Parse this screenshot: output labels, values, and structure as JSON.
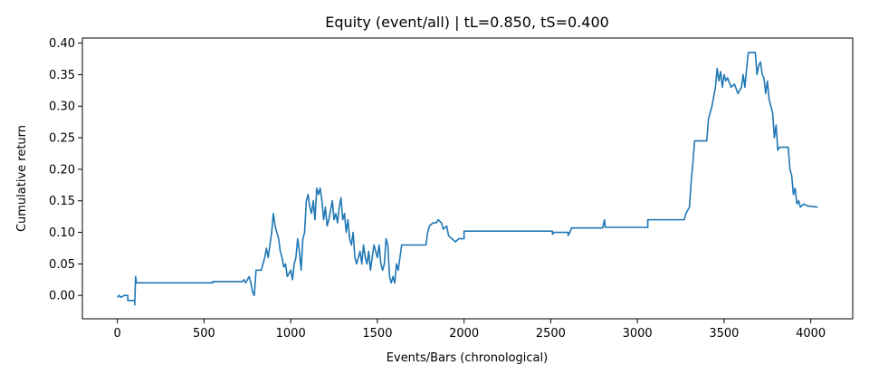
{
  "chart_data": {
    "type": "line",
    "title": "Equity (event/all) | tL=0.850, tS=0.400",
    "x_label": "Events/Bars (chronological)",
    "y_label": "Cumulative return",
    "xlim": [
      -202,
      4242
    ],
    "ylim": [
      -0.037,
      0.408
    ],
    "xticks": [
      0,
      500,
      1000,
      1500,
      2000,
      2500,
      3000,
      3500,
      4000
    ],
    "yticks": [
      {
        "value": 0,
        "label": "0.00"
      },
      {
        "value": 0.05,
        "label": "0.05"
      },
      {
        "value": 0.1,
        "label": "0.10"
      },
      {
        "value": 0.15,
        "label": "0.15"
      },
      {
        "value": 0.2,
        "label": "0.20"
      },
      {
        "value": 0.25,
        "label": "0.25"
      },
      {
        "value": 0.3,
        "label": "0.30"
      },
      {
        "value": 0.35,
        "label": "0.35"
      },
      {
        "value": 0.4,
        "label": "0.40"
      }
    ],
    "grid": false,
    "series": [
      {
        "color": "#1f77b4",
        "x": [
          0,
          10,
          20,
          40,
          60,
          60,
          100,
          100,
          105,
          110,
          550,
          550,
          720,
          730,
          740,
          760,
          770,
          780,
          790,
          800,
          830,
          840,
          850,
          860,
          870,
          880,
          890,
          900,
          910,
          920,
          930,
          940,
          950,
          960,
          970,
          980,
          1000,
          1010,
          1020,
          1030,
          1040,
          1050,
          1060,
          1070,
          1080,
          1090,
          1100,
          1110,
          1120,
          1130,
          1140,
          1150,
          1160,
          1170,
          1180,
          1190,
          1200,
          1210,
          1220,
          1230,
          1240,
          1250,
          1260,
          1270,
          1280,
          1290,
          1300,
          1310,
          1320,
          1330,
          1340,
          1350,
          1360,
          1370,
          1380,
          1390,
          1400,
          1410,
          1420,
          1430,
          1440,
          1450,
          1460,
          1470,
          1480,
          1490,
          1500,
          1510,
          1520,
          1530,
          1540,
          1550,
          1560,
          1570,
          1580,
          1590,
          1600,
          1610,
          1620,
          1630,
          1640,
          1780,
          1790,
          1800,
          1820,
          1840,
          1850,
          1870,
          1880,
          1900,
          1910,
          1930,
          1950,
          1970,
          2000,
          2000,
          2510,
          2510,
          2520,
          2600,
          2600,
          2610,
          2620,
          2800,
          2810,
          2815,
          3060,
          3060,
          3270,
          3280,
          3300,
          3310,
          3320,
          3330,
          3400,
          3410,
          3430,
          3450,
          3460,
          3470,
          3480,
          3490,
          3500,
          3510,
          3520,
          3540,
          3560,
          3580,
          3600,
          3610,
          3620,
          3630,
          3640,
          3680,
          3690,
          3700,
          3710,
          3720,
          3730,
          3740,
          3750,
          3760,
          3770,
          3780,
          3790,
          3800,
          3810,
          3820,
          3870,
          3880,
          3890,
          3900,
          3910,
          3920,
          3930,
          3940,
          3960,
          3980,
          4040
        ],
        "values": [
          -0.003,
          0.0,
          -0.003,
          0.0,
          0.0,
          -0.008,
          -0.008,
          -0.015,
          0.03,
          0.02,
          0.02,
          0.022,
          0.022,
          0.025,
          0.02,
          0.03,
          0.02,
          0.005,
          0.0,
          0.04,
          0.04,
          0.05,
          0.06,
          0.075,
          0.06,
          0.08,
          0.1,
          0.13,
          0.11,
          0.1,
          0.09,
          0.07,
          0.06,
          0.045,
          0.05,
          0.03,
          0.04,
          0.025,
          0.05,
          0.06,
          0.09,
          0.07,
          0.04,
          0.09,
          0.1,
          0.15,
          0.16,
          0.14,
          0.13,
          0.15,
          0.12,
          0.17,
          0.16,
          0.17,
          0.15,
          0.12,
          0.14,
          0.11,
          0.12,
          0.135,
          0.15,
          0.12,
          0.13,
          0.115,
          0.14,
          0.155,
          0.12,
          0.13,
          0.1,
          0.12,
          0.09,
          0.08,
          0.1,
          0.06,
          0.05,
          0.06,
          0.07,
          0.05,
          0.08,
          0.06,
          0.05,
          0.07,
          0.04,
          0.06,
          0.08,
          0.07,
          0.06,
          0.08,
          0.05,
          0.04,
          0.05,
          0.09,
          0.08,
          0.03,
          0.02,
          0.03,
          0.02,
          0.05,
          0.04,
          0.06,
          0.08,
          0.08,
          0.1,
          0.11,
          0.115,
          0.115,
          0.12,
          0.115,
          0.105,
          0.11,
          0.095,
          0.09,
          0.085,
          0.09,
          0.09,
          0.102,
          0.102,
          0.097,
          0.1,
          0.1,
          0.095,
          0.1,
          0.107,
          0.107,
          0.12,
          0.108,
          0.108,
          0.12,
          0.12,
          0.13,
          0.14,
          0.18,
          0.21,
          0.245,
          0.245,
          0.28,
          0.3,
          0.33,
          0.36,
          0.34,
          0.355,
          0.33,
          0.35,
          0.34,
          0.345,
          0.33,
          0.335,
          0.32,
          0.33,
          0.35,
          0.33,
          0.36,
          0.385,
          0.385,
          0.35,
          0.365,
          0.37,
          0.35,
          0.345,
          0.32,
          0.34,
          0.31,
          0.3,
          0.29,
          0.25,
          0.27,
          0.23,
          0.235,
          0.235,
          0.2,
          0.19,
          0.16,
          0.17,
          0.145,
          0.15,
          0.14,
          0.145,
          0.142,
          0.14
        ]
      }
    ]
  }
}
